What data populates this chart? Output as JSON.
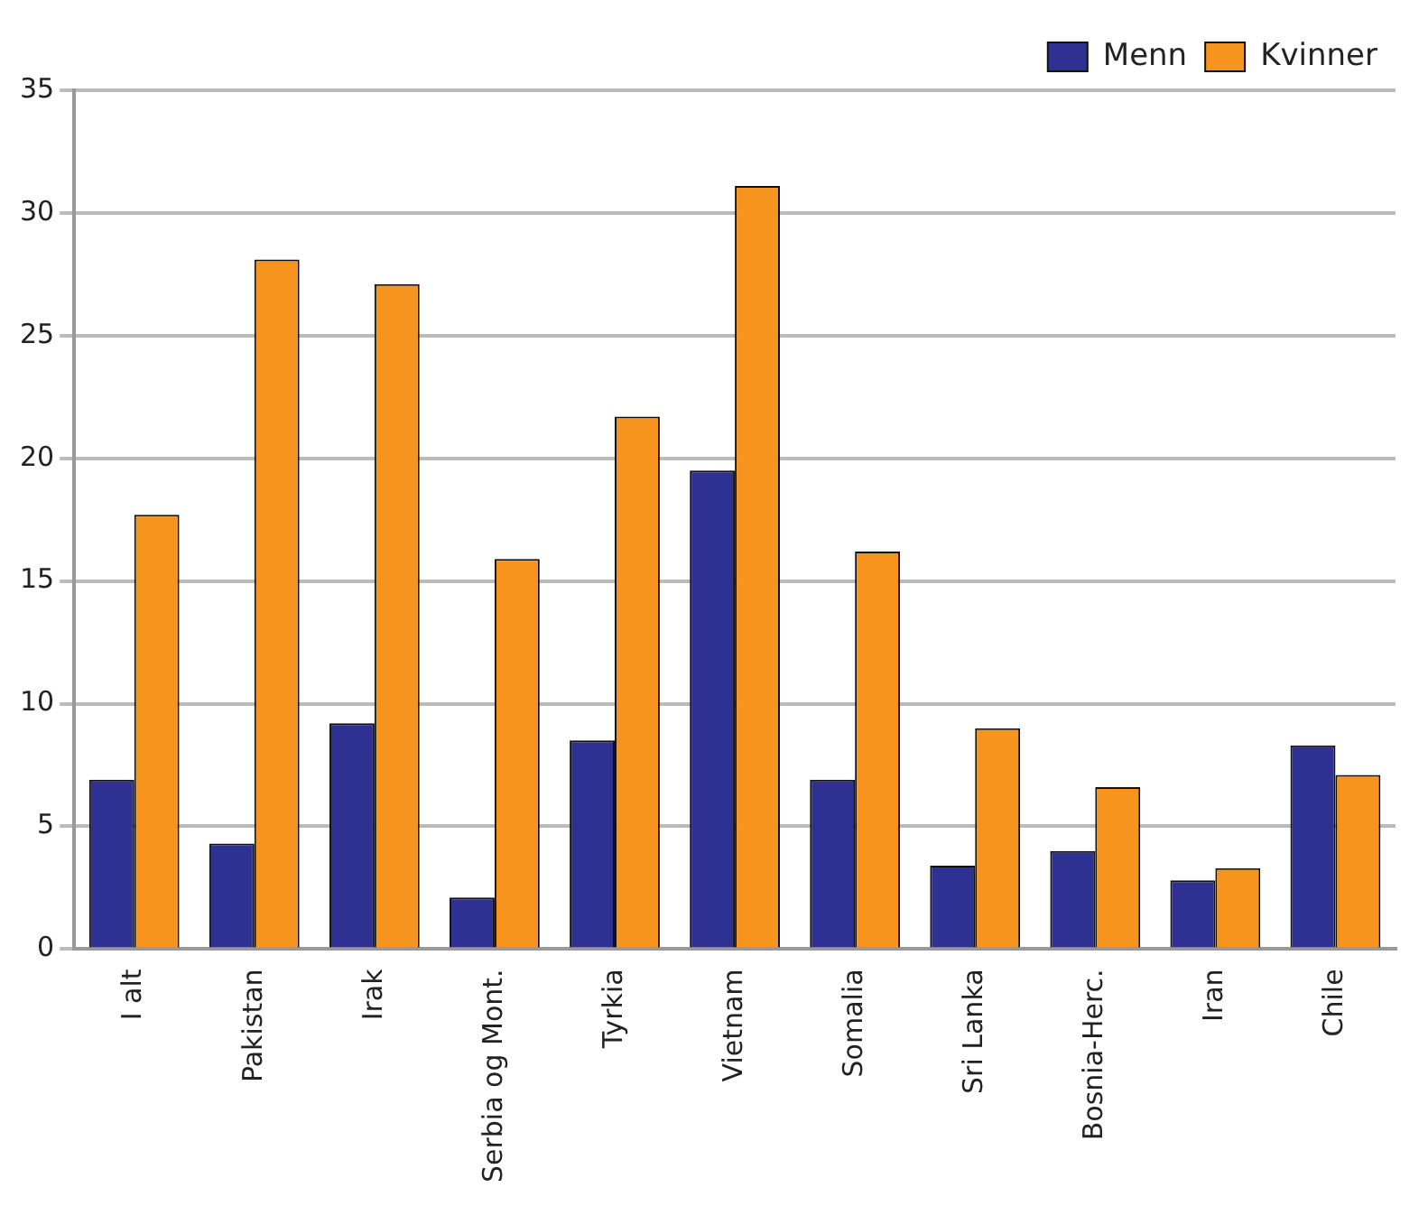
{
  "chart_data": {
    "type": "bar",
    "categories": [
      "I alt",
      "Pakistan",
      "Irak",
      "Serbia og Mont.",
      "Tyrkia",
      "Vietnam",
      "Somalia",
      "Sri Lanka",
      "Bosnia-Herc.",
      "Iran",
      "Chile"
    ],
    "series": [
      {
        "name": "Menn",
        "color": "#2e3192",
        "values": [
          6.9,
          4.3,
          9.2,
          2.1,
          8.5,
          19.5,
          6.9,
          3.4,
          4.0,
          2.8,
          8.3
        ]
      },
      {
        "name": "Kvinner",
        "color": "#f7941d",
        "values": [
          17.7,
          28.1,
          27.1,
          15.9,
          21.7,
          31.1,
          16.2,
          9.0,
          6.6,
          3.3,
          7.1
        ]
      }
    ],
    "ylim": [
      0,
      35
    ],
    "yticks": [
      0,
      5,
      10,
      15,
      20,
      25,
      30,
      35
    ],
    "grid": "y",
    "legend": "top right"
  }
}
